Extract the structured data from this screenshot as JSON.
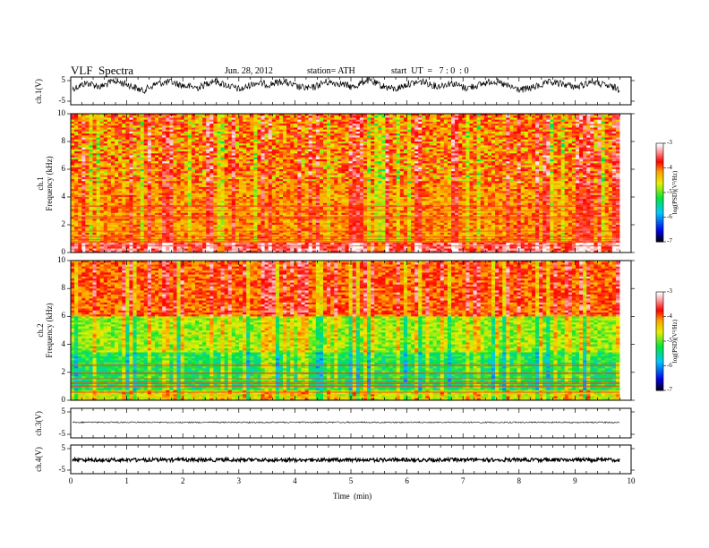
{
  "header": {
    "title": "VLF  Spectra",
    "date": "Jun. 28, 2012",
    "station": "station= ATH",
    "start": "start  UT  =   7 : 0  : 0"
  },
  "chart_data": [
    {
      "type": "line",
      "panel": "ch1-waveform",
      "ylabel": "ch.1(V)",
      "ylim": [
        -5,
        5
      ],
      "yticks": [
        "5",
        "-5"
      ],
      "xlim": [
        0,
        10
      ],
      "series": [
        {
          "values": [
            0.5,
            2.0,
            1.0,
            2.5,
            1.5,
            0.0,
            1.8,
            2.2,
            1.2,
            0.8,
            2.6,
            1.4,
            0.3,
            2.0,
            1.6,
            2.4,
            1.0,
            0.6,
            2.2,
            1.9,
            0.9,
            2.7,
            1.3,
            0.4,
            1.8,
            2.3,
            1.1,
            2.0,
            0.7,
            1.5,
            2.5,
            1.2,
            0.2,
            1.0,
            2.1,
            1.7,
            0.9,
            2.4,
            1.3,
            0.5
          ]
        }
      ]
    },
    {
      "type": "heatmap",
      "panel": "ch1-spectrogram",
      "ylabel": "ch.1\nFrequency (kHz)",
      "ylim": [
        0,
        10
      ],
      "yticks": [
        "10",
        "8",
        "6",
        "4",
        "2",
        "0"
      ],
      "xlim": [
        0,
        10
      ],
      "colorbar": {
        "label": "log(PSD)(V²/Hz)",
        "range": [
          -7,
          -3
        ],
        "ticks": [
          "-3",
          "-4",
          "-5",
          "-6",
          "-7"
        ]
      }
    },
    {
      "type": "heatmap",
      "panel": "ch2-spectrogram",
      "ylabel": "ch.2\nFrequency (kHz)",
      "ylim": [
        0,
        10
      ],
      "yticks": [
        "10",
        "8",
        "6",
        "4",
        "2",
        "0"
      ],
      "xlim": [
        0,
        10
      ],
      "colorbar": {
        "label": "log(PSD)(V²/Hz)",
        "range": [
          -7,
          -3
        ],
        "ticks": [
          "-3",
          "-4",
          "-5",
          "-6",
          "-7"
        ]
      }
    },
    {
      "type": "line",
      "panel": "ch3-waveform",
      "ylabel": "ch.3(V)",
      "ylim": [
        -5,
        5
      ],
      "yticks": [
        "5",
        "-5"
      ],
      "xlim": [
        0,
        10
      ],
      "series": [
        {
          "values": [
            0.6,
            0.6,
            0.6,
            0.6,
            0.6,
            0.6,
            0.6,
            0.6,
            0.6,
            0.6
          ]
        }
      ]
    },
    {
      "type": "line",
      "panel": "ch4-waveform",
      "ylabel": "ch.4(V)",
      "ylim": [
        -5,
        5
      ],
      "yticks": [
        "5",
        "-5"
      ],
      "xlim": [
        0,
        10
      ],
      "xlabel": "Time  (min)",
      "xticks": [
        "0",
        "1",
        "2",
        "3",
        "4",
        "5",
        "6",
        "7",
        "8",
        "9",
        "10"
      ],
      "series": [
        {
          "values": [
            -0.5,
            -0.5,
            -0.5,
            -0.5,
            -0.5,
            -0.5,
            -0.5,
            -0.5,
            -0.5,
            -0.5
          ]
        }
      ]
    }
  ]
}
